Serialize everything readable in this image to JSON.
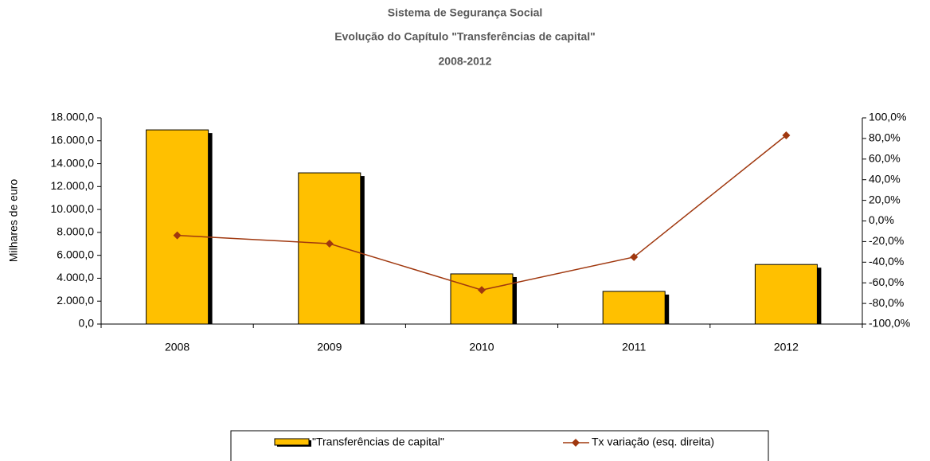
{
  "chart_data": {
    "type": "bar",
    "title": [
      "Sistema de Segurança Social",
      "Evolução do Capítulo \"Transferências de capital\"",
      "2008-2012"
    ],
    "ylabel": "Milhares de euro",
    "categories": [
      "2008",
      "2009",
      "2010",
      "2011",
      "2012"
    ],
    "series": [
      {
        "name": "\"Transferências de capital\"",
        "type": "bar",
        "color": "#FFC000",
        "values": [
          16950,
          13200,
          4380,
          2850,
          5200
        ]
      },
      {
        "name": "Tx variação (esq. direita)",
        "type": "line",
        "axis": "y2",
        "color": "#A0380F",
        "values": [
          -14,
          -22,
          -67,
          -35,
          83
        ]
      }
    ],
    "ylim": [
      0,
      18000
    ],
    "yticks": [
      {
        "value": 0,
        "label": "0,0"
      },
      {
        "value": 2000,
        "label": "2.000,0"
      },
      {
        "value": 4000,
        "label": "4.000,0"
      },
      {
        "value": 6000,
        "label": "6.000,0"
      },
      {
        "value": 8000,
        "label": "8.000,0"
      },
      {
        "value": 10000,
        "label": "10.000,0"
      },
      {
        "value": 12000,
        "label": "12.000,0"
      },
      {
        "value": 14000,
        "label": "14.000,0"
      },
      {
        "value": 16000,
        "label": "16.000,0"
      },
      {
        "value": 18000,
        "label": "18.000,0"
      }
    ],
    "y2lim": [
      -100,
      100
    ],
    "y2ticks": [
      {
        "value": -100,
        "label": "-100,0%"
      },
      {
        "value": -80,
        "label": "-80,0%"
      },
      {
        "value": -60,
        "label": "-60,0%"
      },
      {
        "value": -40,
        "label": "-40,0%"
      },
      {
        "value": -20,
        "label": "-20,0%"
      },
      {
        "value": 0,
        "label": "0,0%"
      },
      {
        "value": 20,
        "label": "20,0%"
      },
      {
        "value": 40,
        "label": "40,0%"
      },
      {
        "value": 60,
        "label": "60,0%"
      },
      {
        "value": 80,
        "label": "80,0%"
      },
      {
        "value": 100,
        "label": "100,0%"
      }
    ],
    "legend": "bottom"
  }
}
